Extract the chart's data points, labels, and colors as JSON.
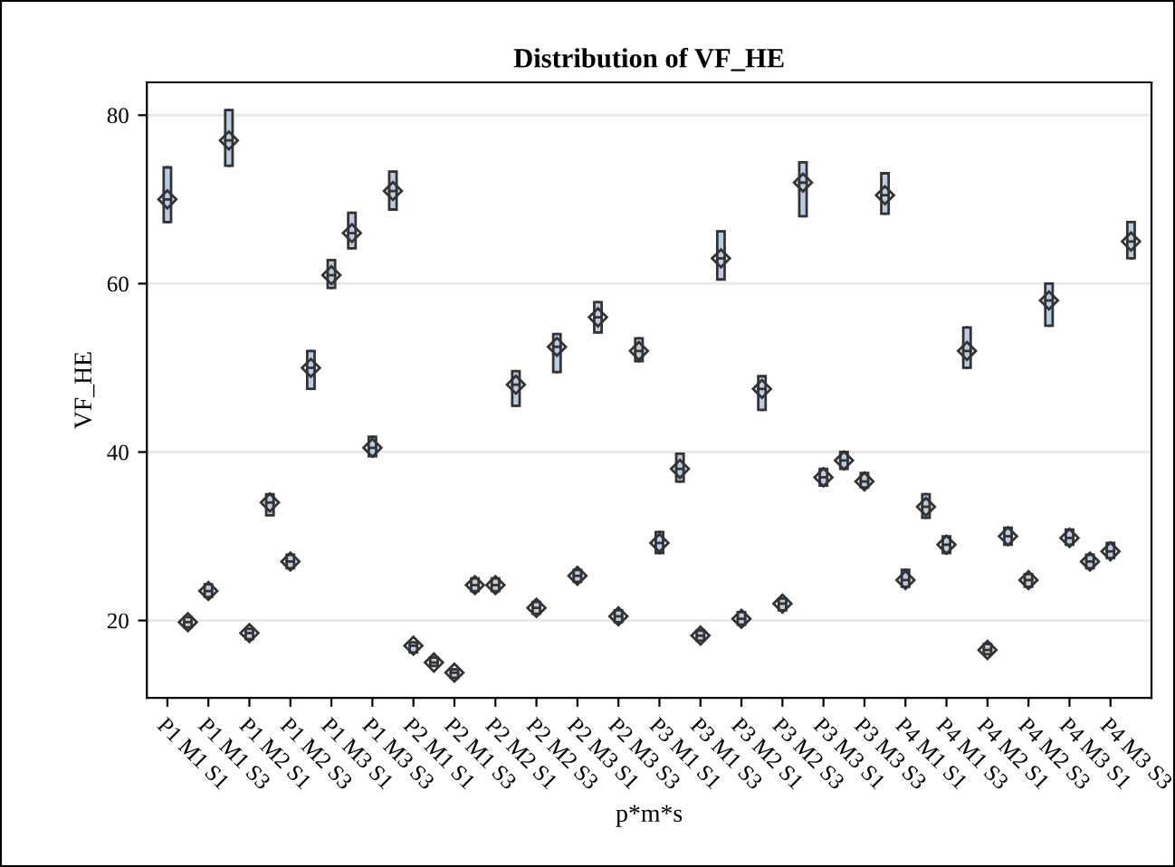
{
  "chart_data": {
    "type": "box",
    "title": "Distribution of VF_HE",
    "xlabel": "p*m*s",
    "ylabel": "VF_HE",
    "categories": [
      "P1 M1 S1",
      null,
      "P1 M1 S3",
      null,
      "P1 M2 S1",
      null,
      "P1 M2 S3",
      null,
      "P1 M3 S1",
      null,
      "P1 M3 S3",
      null,
      "P2 M1 S1",
      null,
      "P2 M1 S3",
      null,
      "P2 M2 S1",
      null,
      "P2 M2 S3",
      null,
      "P2 M3 S1",
      null,
      "P2 M3 S3",
      null,
      "P3 M1 S1",
      null,
      "P3 M1 S3",
      null,
      "P3 M2 S1",
      null,
      "P3 M2 S3",
      null,
      "P3 M3 S1",
      null,
      "P3 M3 S3",
      null,
      "P4 M1 S1",
      null,
      "P4 M1 S3",
      null,
      "P4 M2 S1",
      null,
      "P4 M2 S3",
      null,
      "P4 M3 S1",
      null,
      "P4 M3 S3",
      null
    ],
    "color": "#b9cde5",
    "boxes": [
      {
        "low": 67.3,
        "q1": 67.3,
        "median": 70,
        "q3": 73.8,
        "high": 73.8,
        "mean": 70
      },
      {
        "low": 19.2,
        "q1": 19.2,
        "median": 19.8,
        "q3": 20.4,
        "high": 20.4,
        "mean": 19.8
      },
      {
        "low": 22.8,
        "q1": 22.8,
        "median": 23.5,
        "q3": 24.3,
        "high": 24.3,
        "mean": 23.5
      },
      {
        "low": 74,
        "q1": 74,
        "median": 77,
        "q3": 80.6,
        "high": 80.6,
        "mean": 77
      },
      {
        "low": 17.8,
        "q1": 17.8,
        "median": 18.5,
        "q3": 19,
        "high": 19,
        "mean": 18.5
      },
      {
        "low": 32.5,
        "q1": 32.5,
        "median": 34,
        "q3": 35,
        "high": 35,
        "mean": 34
      },
      {
        "low": 26.2,
        "q1": 26.2,
        "median": 27,
        "q3": 27.8,
        "high": 27.8,
        "mean": 27
      },
      {
        "low": 47.5,
        "q1": 47.5,
        "median": 50,
        "q3": 52,
        "high": 52,
        "mean": 50
      },
      {
        "low": 59.5,
        "q1": 59.5,
        "median": 61,
        "q3": 62.8,
        "high": 62.8,
        "mean": 61
      },
      {
        "low": 64.2,
        "q1": 64.2,
        "median": 66,
        "q3": 68.4,
        "high": 68.4,
        "mean": 66
      },
      {
        "low": 39.5,
        "q1": 39.5,
        "median": 40.5,
        "q3": 41.8,
        "high": 41.8,
        "mean": 40.5
      },
      {
        "low": 68.8,
        "q1": 68.8,
        "median": 71,
        "q3": 73.3,
        "high": 73.3,
        "mean": 71
      },
      {
        "low": 16.2,
        "q1": 16.2,
        "median": 17,
        "q3": 17.4,
        "high": 17.4,
        "mean": 17
      },
      {
        "low": 14.6,
        "q1": 14.6,
        "median": 15,
        "q3": 15.6,
        "high": 15.6,
        "mean": 15
      },
      {
        "low": 13.2,
        "q1": 13.2,
        "median": 13.8,
        "q3": 14.2,
        "high": 14.2,
        "mean": 13.8
      },
      {
        "low": 23.5,
        "q1": 23.5,
        "median": 24.2,
        "q3": 25,
        "high": 25,
        "mean": 24.2
      },
      {
        "low": 23.5,
        "q1": 23.5,
        "median": 24.2,
        "q3": 25,
        "high": 25,
        "mean": 24.2
      },
      {
        "low": 45.5,
        "q1": 45.5,
        "median": 48,
        "q3": 49.6,
        "high": 49.6,
        "mean": 48
      },
      {
        "low": 20.8,
        "q1": 20.8,
        "median": 21.5,
        "q3": 22.2,
        "high": 22.2,
        "mean": 21.5
      },
      {
        "low": 49.5,
        "q1": 49.5,
        "median": 52.5,
        "q3": 54,
        "high": 54,
        "mean": 52.5
      },
      {
        "low": 24.6,
        "q1": 24.6,
        "median": 25.3,
        "q3": 26,
        "high": 26,
        "mean": 25.3
      },
      {
        "low": 54.2,
        "q1": 54.2,
        "median": 56,
        "q3": 57.8,
        "high": 57.8,
        "mean": 56
      },
      {
        "low": 19.8,
        "q1": 19.8,
        "median": 20.5,
        "q3": 21.2,
        "high": 21.2,
        "mean": 20.5
      },
      {
        "low": 50.8,
        "q1": 50.8,
        "median": 52,
        "q3": 53.5,
        "high": 53.5,
        "mean": 52
      },
      {
        "low": 28,
        "q1": 28,
        "median": 29.2,
        "q3": 30.5,
        "high": 30.5,
        "mean": 29.2
      },
      {
        "low": 36.5,
        "q1": 36.5,
        "median": 38,
        "q3": 39.8,
        "high": 39.8,
        "mean": 38
      },
      {
        "low": 17.6,
        "q1": 17.6,
        "median": 18.2,
        "q3": 18.8,
        "high": 18.8,
        "mean": 18.2
      },
      {
        "low": 60.5,
        "q1": 60.5,
        "median": 63,
        "q3": 66.2,
        "high": 66.2,
        "mean": 63
      },
      {
        "low": 19.5,
        "q1": 19.5,
        "median": 20.2,
        "q3": 21,
        "high": 21,
        "mean": 20.2
      },
      {
        "low": 45,
        "q1": 45,
        "median": 47.5,
        "q3": 49,
        "high": 49,
        "mean": 47.5
      },
      {
        "low": 21.2,
        "q1": 21.2,
        "median": 22,
        "q3": 22.6,
        "high": 22.6,
        "mean": 22
      },
      {
        "low": 68,
        "q1": 68,
        "median": 72,
        "q3": 74.4,
        "high": 74.4,
        "mean": 72
      },
      {
        "low": 36,
        "q1": 36,
        "median": 37,
        "q3": 38,
        "high": 38,
        "mean": 37
      },
      {
        "low": 38,
        "q1": 38,
        "median": 39,
        "q3": 40,
        "high": 40,
        "mean": 39
      },
      {
        "low": 35.8,
        "q1": 35.8,
        "median": 36.5,
        "q3": 37.5,
        "high": 37.5,
        "mean": 36.5
      },
      {
        "low": 68.3,
        "q1": 68.3,
        "median": 70.5,
        "q3": 73.1,
        "high": 73.1,
        "mean": 70.5
      },
      {
        "low": 24,
        "q1": 24,
        "median": 24.8,
        "q3": 26,
        "high": 26,
        "mean": 24.8
      },
      {
        "low": 32.2,
        "q1": 32.2,
        "median": 33.5,
        "q3": 35,
        "high": 35,
        "mean": 33.5
      },
      {
        "low": 28,
        "q1": 28,
        "median": 29,
        "q3": 30,
        "high": 30,
        "mean": 29
      },
      {
        "low": 50,
        "q1": 50,
        "median": 52,
        "q3": 54.8,
        "high": 54.8,
        "mean": 52
      },
      {
        "low": 16,
        "q1": 16,
        "median": 16.5,
        "q3": 17.2,
        "high": 17.2,
        "mean": 16.5
      },
      {
        "low": 29,
        "q1": 29,
        "median": 30,
        "q3": 31,
        "high": 31,
        "mean": 30
      },
      {
        "low": 24,
        "q1": 24,
        "median": 24.8,
        "q3": 25.5,
        "high": 25.5,
        "mean": 24.8
      },
      {
        "low": 55,
        "q1": 55,
        "median": 58,
        "q3": 60,
        "high": 60,
        "mean": 58
      },
      {
        "low": 29,
        "q1": 29,
        "median": 29.8,
        "q3": 30.8,
        "high": 30.8,
        "mean": 29.8
      },
      {
        "low": 26.2,
        "q1": 26.2,
        "median": 27,
        "q3": 27.8,
        "high": 27.8,
        "mean": 27
      },
      {
        "low": 27.4,
        "q1": 27.4,
        "median": 28.2,
        "q3": 29.2,
        "high": 29.2,
        "mean": 28.2
      },
      {
        "low": 63,
        "q1": 63,
        "median": 65,
        "q3": 67.3,
        "high": 67.3,
        "mean": 65
      }
    ],
    "ylim": [
      10.8,
      83.9
    ],
    "yticks": [
      20,
      40,
      60,
      80
    ],
    "grid": "y",
    "marker": "diamond"
  }
}
